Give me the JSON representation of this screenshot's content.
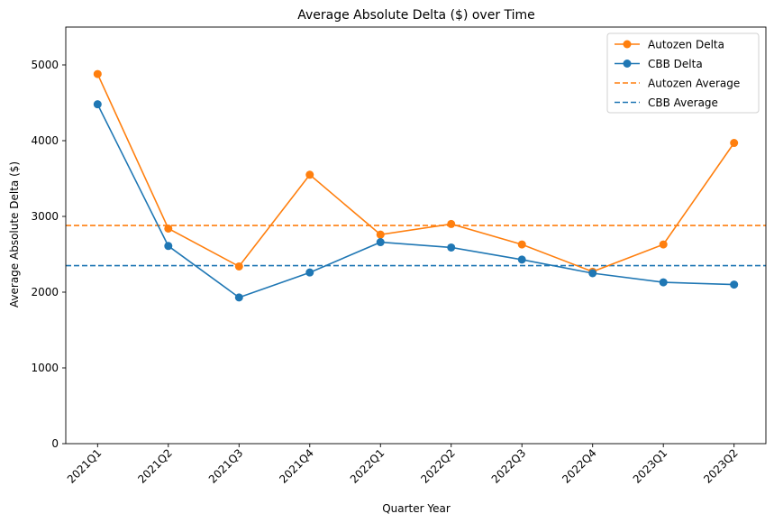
{
  "chart_data": {
    "type": "line",
    "title": "Average Absolute Delta ($) over Time",
    "xlabel": "Quarter Year",
    "ylabel": "Average Absolute Delta ($)",
    "categories": [
      "2021Q1",
      "2021Q2",
      "2021Q3",
      "2021Q4",
      "2022Q1",
      "2022Q2",
      "2022Q3",
      "2022Q4",
      "2023Q1",
      "2023Q2"
    ],
    "ylim": [
      0,
      5500
    ],
    "yticks": [
      0,
      1000,
      2000,
      3000,
      4000,
      5000
    ],
    "series": [
      {
        "name": "Autozen Delta",
        "color": "#ff7f0e",
        "values": [
          4880,
          2840,
          2340,
          3550,
          2760,
          2900,
          2630,
          2270,
          2630,
          3970
        ]
      },
      {
        "name": "CBB Delta",
        "color": "#1f77b4",
        "values": [
          4480,
          2610,
          1930,
          2260,
          2660,
          2590,
          2430,
          2250,
          2130,
          2100
        ]
      }
    ],
    "reference_lines": [
      {
        "name": "Autozen Average",
        "color": "#ff7f0e",
        "style": "dashed",
        "value": 2880
      },
      {
        "name": "CBB Average",
        "color": "#1f77b4",
        "style": "dashed",
        "value": 2350
      }
    ],
    "legend_position": "top-right",
    "grid": false
  }
}
